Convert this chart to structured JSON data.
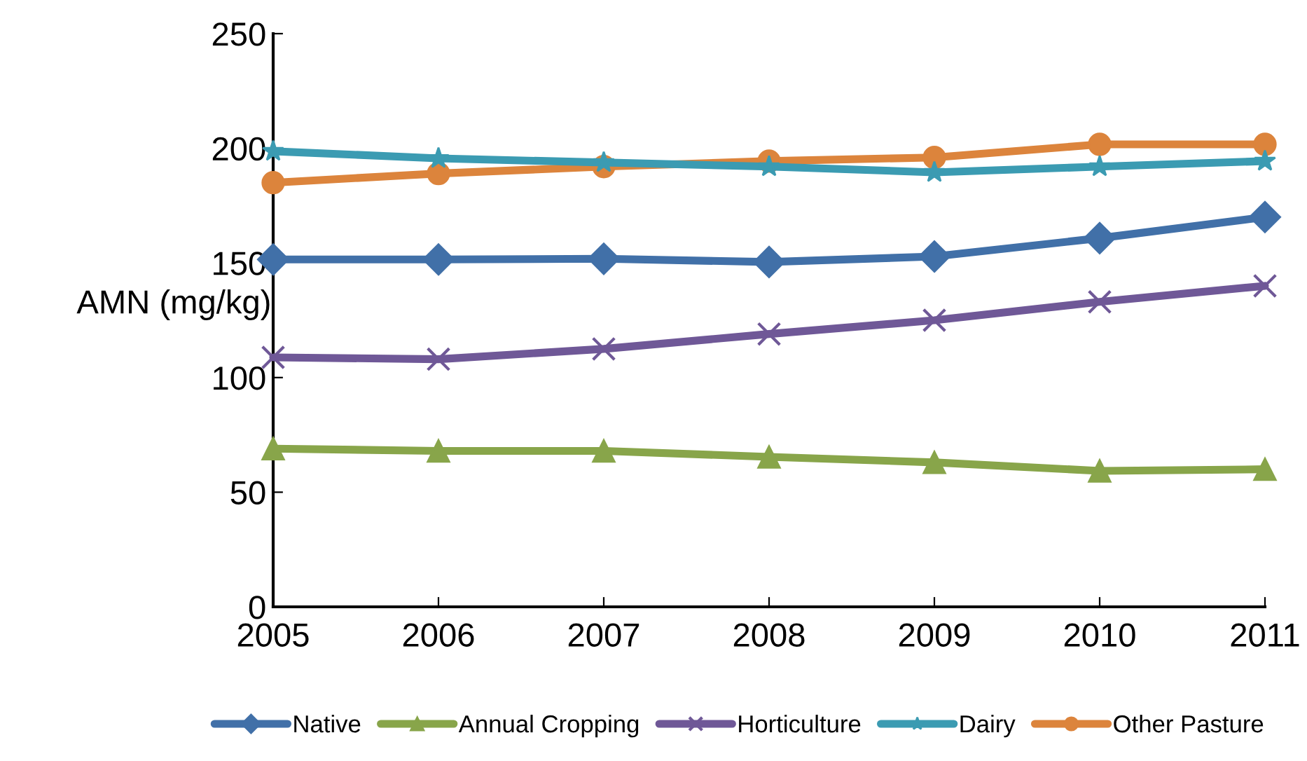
{
  "chart_data": {
    "type": "line",
    "ylabel": "AMN (mg/kg)",
    "x": [
      2005,
      2006,
      2007,
      2008,
      2009,
      2010,
      2011
    ],
    "xlim": [
      2005,
      2011
    ],
    "xticks": [
      2005,
      2006,
      2007,
      2008,
      2009,
      2010,
      2011
    ],
    "ylim": [
      0,
      250
    ],
    "yticks": [
      0,
      50,
      100,
      150,
      200,
      250
    ],
    "grid": false,
    "legend": "bottom",
    "line_style": "solid",
    "series": [
      {
        "name": "Native",
        "color": "#4170a8",
        "marker": "diamond",
        "values": [
          151.5,
          151.5,
          151.8,
          150.4,
          152.8,
          160.8,
          170
        ]
      },
      {
        "name": "Annual Cropping",
        "color": "#88a54a",
        "marker": "triangle",
        "values": [
          69,
          68,
          68,
          65.4,
          63,
          59.3,
          60
        ]
      },
      {
        "name": "Horticulture",
        "color": "#6f5897",
        "marker": "cross",
        "values": [
          108.8,
          108,
          112.5,
          119,
          125,
          133,
          140
        ]
      },
      {
        "name": "Dairy",
        "color": "#3b9bb2",
        "marker": "star",
        "values": [
          198.7,
          195.6,
          193.8,
          192,
          189.5,
          192,
          194.4
        ]
      },
      {
        "name": "Other Pasture",
        "color": "#dc843c",
        "marker": "circle",
        "values": [
          185,
          189,
          192,
          194.4,
          196,
          201.7,
          201.7
        ]
      }
    ]
  }
}
